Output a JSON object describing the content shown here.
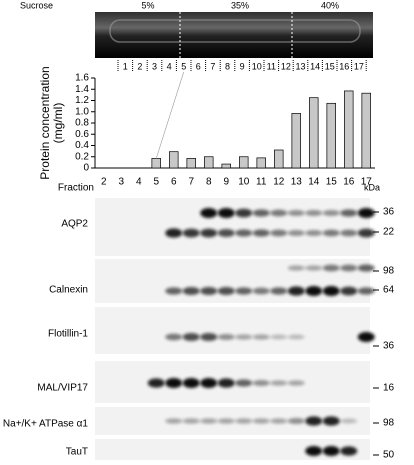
{
  "gradient": {
    "label": "Sucrose",
    "zones": [
      "5%",
      "35%",
      "40%"
    ],
    "fractions": [
      1,
      2,
      3,
      4,
      5,
      6,
      7,
      8,
      9,
      10,
      11,
      12,
      13,
      14,
      15,
      16,
      17
    ]
  },
  "chart_data": {
    "type": "bar",
    "ylabel": [
      "Protein concentration",
      "(mg/ml)"
    ],
    "xlabel": "Fraction",
    "categories": [
      "2",
      "3",
      "4",
      "5",
      "6",
      "7",
      "8",
      "9",
      "10",
      "11",
      "12",
      "13",
      "14",
      "15",
      "16",
      "17"
    ],
    "values": [
      0,
      0,
      0,
      0.17,
      0.29,
      0.17,
      0.2,
      0.07,
      0.2,
      0.18,
      0.32,
      0.97,
      1.25,
      1.15,
      1.37,
      1.33
    ],
    "color": "#c8c8c8",
    "ylim": [
      0,
      1.6
    ],
    "yticks": [
      0,
      0.2,
      0.4,
      0.6,
      0.8,
      {
        "value": 1,
        "label": "1.0"
      },
      1.2,
      1.4,
      1.6
    ]
  },
  "blots": {
    "unit": "kDa",
    "rows": [
      {
        "name": "AQP2",
        "markers": [
          36,
          22
        ]
      },
      {
        "name": "Calnexin",
        "markers": [
          98,
          64
        ]
      },
      {
        "name": "Flotillin-1",
        "markers": [
          36
        ]
      },
      {
        "name": "MAL/VIP17",
        "markers": [
          16
        ]
      },
      {
        "name": "Na+/K+ ATPase α1",
        "markers": [
          98
        ]
      },
      {
        "name": "TauT",
        "markers": [
          50
        ]
      }
    ]
  }
}
